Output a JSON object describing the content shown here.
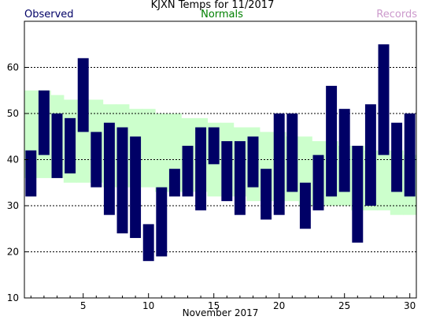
{
  "title": "KJXN Temps for 11/2017",
  "legend": {
    "observed": "Observed",
    "normals": "Normals",
    "records": "Records"
  },
  "colors": {
    "observed": "#000066",
    "normals": "#ccffcc",
    "records": "#cc99cc",
    "normals_text": "#008000",
    "gridline": "#000000"
  },
  "chart_data": {
    "type": "bar",
    "title": "KJXN Temps for 11/2017",
    "xlabel": "November 2017",
    "ylabel": "",
    "xlim": [
      0.5,
      30.5
    ],
    "ylim": [
      10,
      70
    ],
    "x_ticks": [
      5,
      10,
      15,
      20,
      25,
      30
    ],
    "y_ticks": [
      10,
      20,
      30,
      40,
      50,
      60
    ],
    "grid": true,
    "legend_position": "top",
    "days": [
      1,
      2,
      3,
      4,
      5,
      6,
      7,
      8,
      9,
      10,
      11,
      12,
      13,
      14,
      15,
      16,
      17,
      18,
      19,
      20,
      21,
      22,
      23,
      24,
      25,
      26,
      27,
      28,
      29,
      30
    ],
    "observed_high": [
      42,
      55,
      50,
      49,
      62,
      46,
      48,
      47,
      45,
      26,
      34,
      38,
      43,
      47,
      47,
      44,
      44,
      45,
      38,
      50,
      50,
      35,
      41,
      56,
      51,
      43,
      52,
      65,
      48,
      50
    ],
    "observed_low": [
      32,
      41,
      36,
      37,
      46,
      34,
      28,
      24,
      23,
      18,
      19,
      32,
      32,
      29,
      39,
      31,
      28,
      34,
      27,
      28,
      33,
      25,
      29,
      32,
      33,
      22,
      30,
      41,
      33,
      32
    ],
    "normal_high": [
      55,
      55,
      54,
      53,
      53,
      53,
      52,
      52,
      51,
      51,
      50,
      50,
      49,
      49,
      48,
      48,
      47,
      47,
      46,
      46,
      45,
      45,
      44,
      44,
      43,
      43,
      42,
      42,
      42,
      41
    ],
    "normal_low": [
      36,
      36,
      36,
      35,
      35,
      35,
      34,
      34,
      34,
      34,
      33,
      33,
      33,
      33,
      32,
      32,
      32,
      31,
      31,
      31,
      31,
      30,
      30,
      30,
      30,
      29,
      29,
      29,
      28,
      28
    ]
  }
}
